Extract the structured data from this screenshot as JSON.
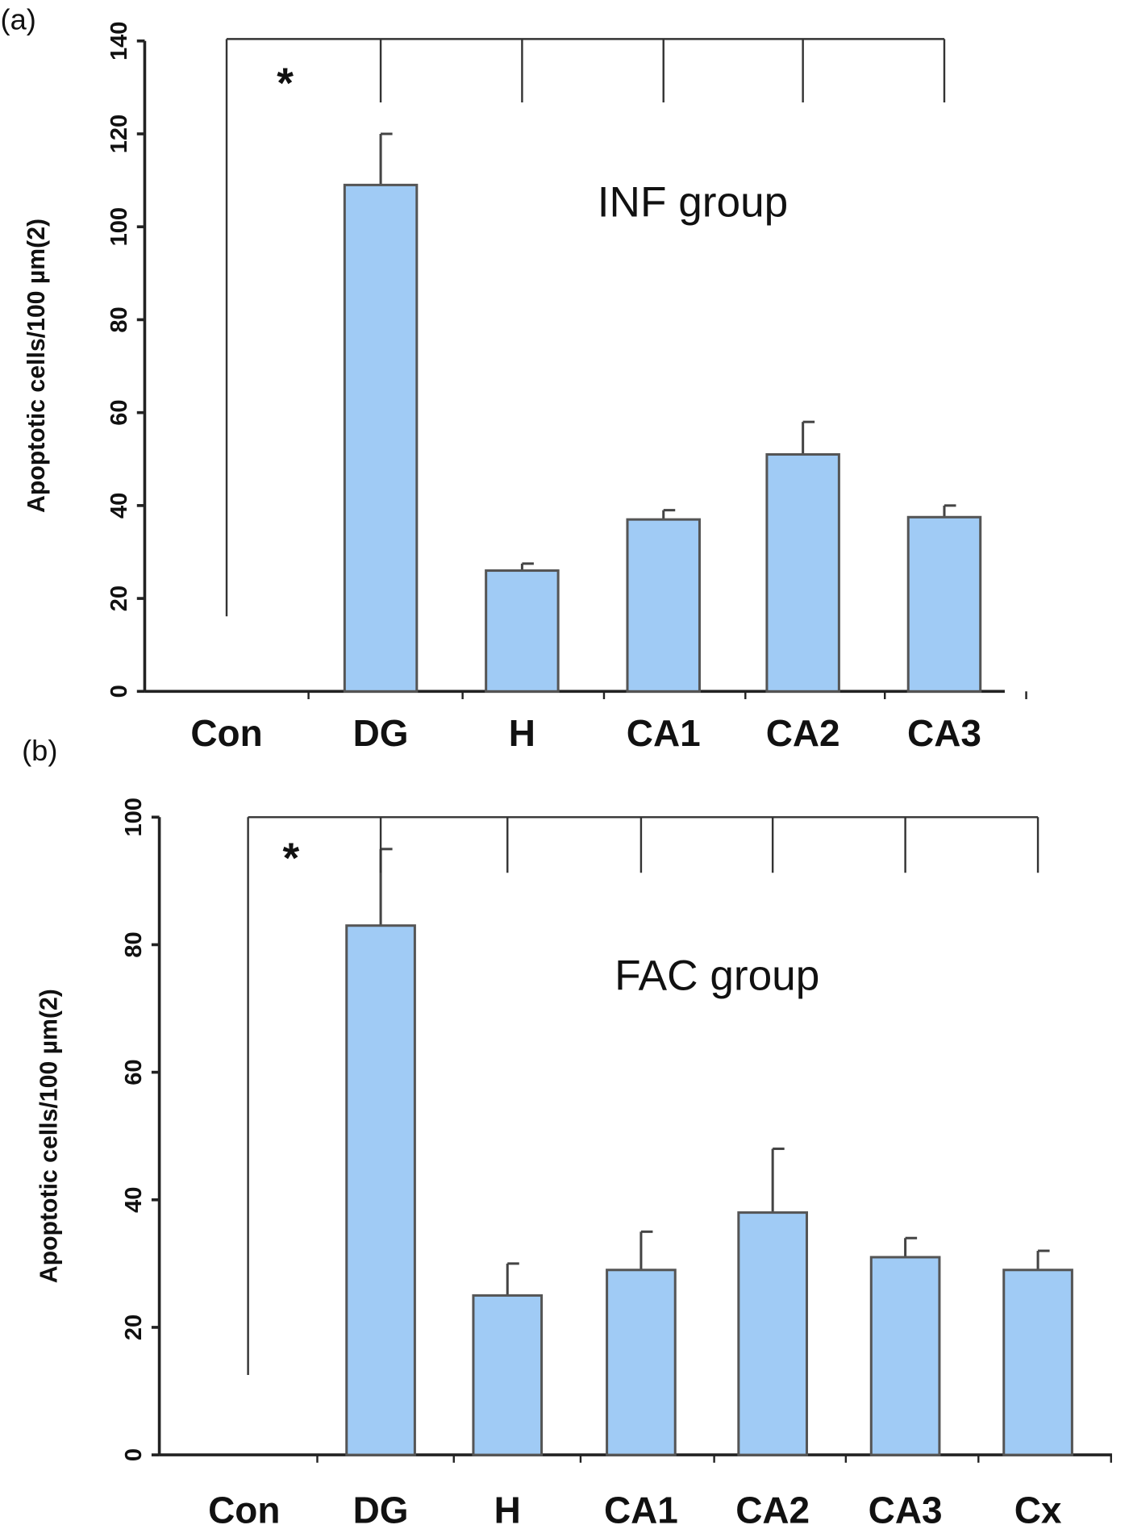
{
  "chart_data": [
    {
      "type": "bar",
      "panel_label": "(a)",
      "annotation": "INF group",
      "significance_marker": "*",
      "ylabel": "Apoptotic cells/100 µm(2)",
      "xlabel": "",
      "ylim": [
        0,
        140
      ],
      "yticks": [
        "0",
        "20",
        "40",
        "60",
        "80",
        "100",
        "120",
        "140"
      ],
      "categories": [
        "Con",
        "DG",
        "H",
        "CA1",
        "CA2",
        "CA3"
      ],
      "values": [
        0,
        109,
        26,
        37,
        51,
        37.5
      ],
      "error_upper": [
        null,
        120,
        27.5,
        39,
        58,
        40
      ],
      "bar_color": "#a0cbf5",
      "grid": false
    },
    {
      "type": "bar",
      "panel_label": "(b)",
      "annotation": "FAC group",
      "significance_marker": "*",
      "ylabel": "Apoptotic cells/100 µm(2)",
      "xlabel": "",
      "ylim": [
        0,
        100
      ],
      "yticks": [
        "0",
        "20",
        "40",
        "60",
        "80",
        "100"
      ],
      "categories": [
        "Con",
        "DG",
        "H",
        "CA1",
        "CA2",
        "CA3",
        "Cx"
      ],
      "values": [
        0,
        83,
        25,
        29,
        38,
        31,
        29
      ],
      "error_upper": [
        null,
        95,
        30,
        35,
        48,
        34,
        32
      ],
      "bar_color": "#a0cbf5",
      "grid": false
    }
  ]
}
